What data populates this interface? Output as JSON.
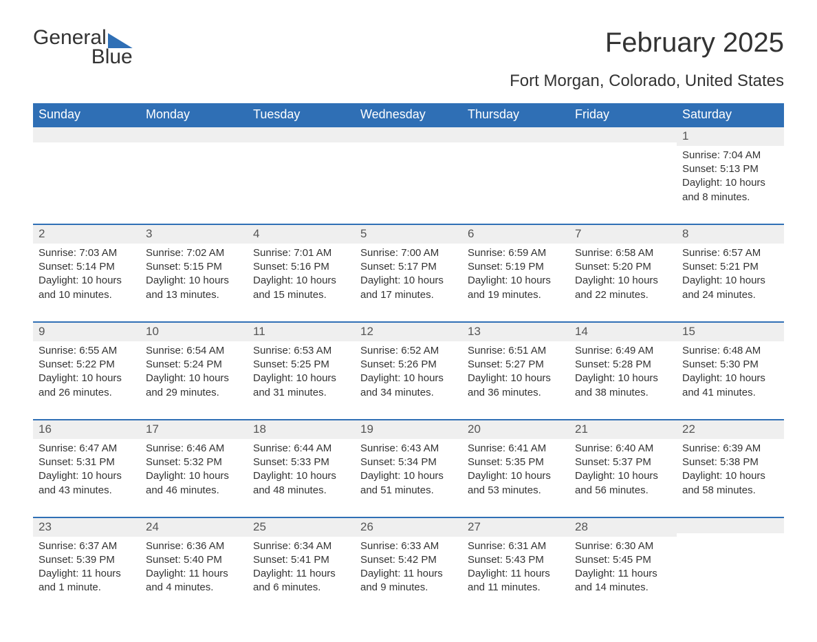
{
  "logo": {
    "word1": "General",
    "word2": "Blue"
  },
  "title": "February 2025",
  "location": "Fort Morgan, Colorado, United States",
  "colors": {
    "brand": "#2f6fb5",
    "header_text": "#ffffff",
    "daynum_bg": "#efefef",
    "text": "#333333",
    "background": "#ffffff"
  },
  "weekday_labels": [
    "Sunday",
    "Monday",
    "Tuesday",
    "Wednesday",
    "Thursday",
    "Friday",
    "Saturday"
  ],
  "weeks": [
    [
      null,
      null,
      null,
      null,
      null,
      null,
      {
        "day": "1",
        "sunrise": "Sunrise: 7:04 AM",
        "sunset": "Sunset: 5:13 PM",
        "daylight": "Daylight: 10 hours and 8 minutes."
      }
    ],
    [
      {
        "day": "2",
        "sunrise": "Sunrise: 7:03 AM",
        "sunset": "Sunset: 5:14 PM",
        "daylight": "Daylight: 10 hours and 10 minutes."
      },
      {
        "day": "3",
        "sunrise": "Sunrise: 7:02 AM",
        "sunset": "Sunset: 5:15 PM",
        "daylight": "Daylight: 10 hours and 13 minutes."
      },
      {
        "day": "4",
        "sunrise": "Sunrise: 7:01 AM",
        "sunset": "Sunset: 5:16 PM",
        "daylight": "Daylight: 10 hours and 15 minutes."
      },
      {
        "day": "5",
        "sunrise": "Sunrise: 7:00 AM",
        "sunset": "Sunset: 5:17 PM",
        "daylight": "Daylight: 10 hours and 17 minutes."
      },
      {
        "day": "6",
        "sunrise": "Sunrise: 6:59 AM",
        "sunset": "Sunset: 5:19 PM",
        "daylight": "Daylight: 10 hours and 19 minutes."
      },
      {
        "day": "7",
        "sunrise": "Sunrise: 6:58 AM",
        "sunset": "Sunset: 5:20 PM",
        "daylight": "Daylight: 10 hours and 22 minutes."
      },
      {
        "day": "8",
        "sunrise": "Sunrise: 6:57 AM",
        "sunset": "Sunset: 5:21 PM",
        "daylight": "Daylight: 10 hours and 24 minutes."
      }
    ],
    [
      {
        "day": "9",
        "sunrise": "Sunrise: 6:55 AM",
        "sunset": "Sunset: 5:22 PM",
        "daylight": "Daylight: 10 hours and 26 minutes."
      },
      {
        "day": "10",
        "sunrise": "Sunrise: 6:54 AM",
        "sunset": "Sunset: 5:24 PM",
        "daylight": "Daylight: 10 hours and 29 minutes."
      },
      {
        "day": "11",
        "sunrise": "Sunrise: 6:53 AM",
        "sunset": "Sunset: 5:25 PM",
        "daylight": "Daylight: 10 hours and 31 minutes."
      },
      {
        "day": "12",
        "sunrise": "Sunrise: 6:52 AM",
        "sunset": "Sunset: 5:26 PM",
        "daylight": "Daylight: 10 hours and 34 minutes."
      },
      {
        "day": "13",
        "sunrise": "Sunrise: 6:51 AM",
        "sunset": "Sunset: 5:27 PM",
        "daylight": "Daylight: 10 hours and 36 minutes."
      },
      {
        "day": "14",
        "sunrise": "Sunrise: 6:49 AM",
        "sunset": "Sunset: 5:28 PM",
        "daylight": "Daylight: 10 hours and 38 minutes."
      },
      {
        "day": "15",
        "sunrise": "Sunrise: 6:48 AM",
        "sunset": "Sunset: 5:30 PM",
        "daylight": "Daylight: 10 hours and 41 minutes."
      }
    ],
    [
      {
        "day": "16",
        "sunrise": "Sunrise: 6:47 AM",
        "sunset": "Sunset: 5:31 PM",
        "daylight": "Daylight: 10 hours and 43 minutes."
      },
      {
        "day": "17",
        "sunrise": "Sunrise: 6:46 AM",
        "sunset": "Sunset: 5:32 PM",
        "daylight": "Daylight: 10 hours and 46 minutes."
      },
      {
        "day": "18",
        "sunrise": "Sunrise: 6:44 AM",
        "sunset": "Sunset: 5:33 PM",
        "daylight": "Daylight: 10 hours and 48 minutes."
      },
      {
        "day": "19",
        "sunrise": "Sunrise: 6:43 AM",
        "sunset": "Sunset: 5:34 PM",
        "daylight": "Daylight: 10 hours and 51 minutes."
      },
      {
        "day": "20",
        "sunrise": "Sunrise: 6:41 AM",
        "sunset": "Sunset: 5:35 PM",
        "daylight": "Daylight: 10 hours and 53 minutes."
      },
      {
        "day": "21",
        "sunrise": "Sunrise: 6:40 AM",
        "sunset": "Sunset: 5:37 PM",
        "daylight": "Daylight: 10 hours and 56 minutes."
      },
      {
        "day": "22",
        "sunrise": "Sunrise: 6:39 AM",
        "sunset": "Sunset: 5:38 PM",
        "daylight": "Daylight: 10 hours and 58 minutes."
      }
    ],
    [
      {
        "day": "23",
        "sunrise": "Sunrise: 6:37 AM",
        "sunset": "Sunset: 5:39 PM",
        "daylight": "Daylight: 11 hours and 1 minute."
      },
      {
        "day": "24",
        "sunrise": "Sunrise: 6:36 AM",
        "sunset": "Sunset: 5:40 PM",
        "daylight": "Daylight: 11 hours and 4 minutes."
      },
      {
        "day": "25",
        "sunrise": "Sunrise: 6:34 AM",
        "sunset": "Sunset: 5:41 PM",
        "daylight": "Daylight: 11 hours and 6 minutes."
      },
      {
        "day": "26",
        "sunrise": "Sunrise: 6:33 AM",
        "sunset": "Sunset: 5:42 PM",
        "daylight": "Daylight: 11 hours and 9 minutes."
      },
      {
        "day": "27",
        "sunrise": "Sunrise: 6:31 AM",
        "sunset": "Sunset: 5:43 PM",
        "daylight": "Daylight: 11 hours and 11 minutes."
      },
      {
        "day": "28",
        "sunrise": "Sunrise: 6:30 AM",
        "sunset": "Sunset: 5:45 PM",
        "daylight": "Daylight: 11 hours and 14 minutes."
      },
      null
    ]
  ]
}
